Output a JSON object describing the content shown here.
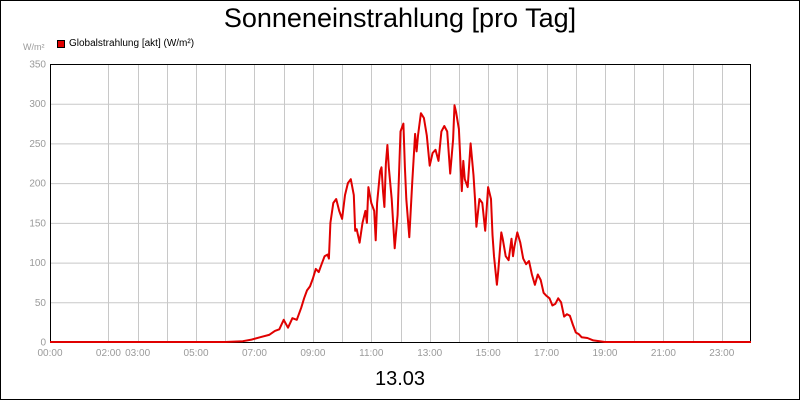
{
  "chart_data": {
    "type": "line",
    "title": "Sonneneinstrahlung [pro Tag]",
    "y_unit_label": "W/m²",
    "x_caption": "13.03",
    "legend": [
      {
        "name": "Globalstrahlung [akt] (W/m²)",
        "color": "#e00000"
      }
    ],
    "legend_position": "top-left",
    "grid": true,
    "xlim": [
      0,
      24
    ],
    "ylim": [
      0,
      350
    ],
    "y_ticks": [
      0,
      50,
      100,
      150,
      200,
      250,
      300,
      350
    ],
    "x_ticks": [
      {
        "value": 0,
        "label": "00:00"
      },
      {
        "value": 2,
        "label": "02:00"
      },
      {
        "value": 3,
        "label": "03:00"
      },
      {
        "value": 5,
        "label": "05:00"
      },
      {
        "value": 7,
        "label": "07:00"
      },
      {
        "value": 9,
        "label": "09:00"
      },
      {
        "value": 11,
        "label": "11:00"
      },
      {
        "value": 13,
        "label": "13:00"
      },
      {
        "value": 15,
        "label": "15:00"
      },
      {
        "value": 17,
        "label": "17:00"
      },
      {
        "value": 19,
        "label": "19:00"
      },
      {
        "value": 21,
        "label": "21:00"
      },
      {
        "value": 23,
        "label": "23:00"
      }
    ],
    "x_gridlines": [
      0,
      2,
      3,
      4,
      5,
      6,
      7,
      8,
      9,
      10,
      11,
      12,
      13,
      14,
      15,
      16,
      17,
      18,
      19,
      20,
      21,
      22,
      23
    ],
    "series": [
      {
        "name": "Globalstrahlung [akt] (W/m²)",
        "color": "#e00000",
        "points": [
          [
            0,
            0
          ],
          [
            6.0,
            0
          ],
          [
            6.6,
            1
          ],
          [
            6.9,
            3
          ],
          [
            7.2,
            6
          ],
          [
            7.5,
            9
          ],
          [
            7.7,
            14
          ],
          [
            7.85,
            16
          ],
          [
            8.0,
            28
          ],
          [
            8.15,
            18
          ],
          [
            8.3,
            30
          ],
          [
            8.45,
            28
          ],
          [
            8.6,
            43
          ],
          [
            8.7,
            55
          ],
          [
            8.8,
            65
          ],
          [
            8.9,
            70
          ],
          [
            9.0,
            80
          ],
          [
            9.1,
            92
          ],
          [
            9.2,
            88
          ],
          [
            9.3,
            98
          ],
          [
            9.4,
            108
          ],
          [
            9.5,
            110
          ],
          [
            9.55,
            105
          ],
          [
            9.6,
            150
          ],
          [
            9.7,
            175
          ],
          [
            9.8,
            180
          ],
          [
            9.9,
            165
          ],
          [
            10.0,
            155
          ],
          [
            10.1,
            185
          ],
          [
            10.2,
            200
          ],
          [
            10.3,
            205
          ],
          [
            10.4,
            185
          ],
          [
            10.45,
            140
          ],
          [
            10.5,
            142
          ],
          [
            10.6,
            125
          ],
          [
            10.7,
            150
          ],
          [
            10.8,
            165
          ],
          [
            10.85,
            150
          ],
          [
            10.9,
            195
          ],
          [
            11.0,
            175
          ],
          [
            11.1,
            165
          ],
          [
            11.15,
            128
          ],
          [
            11.2,
            175
          ],
          [
            11.3,
            215
          ],
          [
            11.35,
            220
          ],
          [
            11.4,
            190
          ],
          [
            11.45,
            170
          ],
          [
            11.5,
            225
          ],
          [
            11.55,
            248
          ],
          [
            11.6,
            220
          ],
          [
            11.7,
            180
          ],
          [
            11.8,
            118
          ],
          [
            11.9,
            160
          ],
          [
            12.0,
            265
          ],
          [
            12.1,
            275
          ],
          [
            12.15,
            220
          ],
          [
            12.2,
            180
          ],
          [
            12.3,
            132
          ],
          [
            12.4,
            200
          ],
          [
            12.5,
            262
          ],
          [
            12.55,
            240
          ],
          [
            12.6,
            260
          ],
          [
            12.7,
            288
          ],
          [
            12.8,
            282
          ],
          [
            12.9,
            260
          ],
          [
            13.0,
            222
          ],
          [
            13.1,
            238
          ],
          [
            13.2,
            242
          ],
          [
            13.3,
            228
          ],
          [
            13.4,
            265
          ],
          [
            13.5,
            272
          ],
          [
            13.6,
            265
          ],
          [
            13.7,
            212
          ],
          [
            13.8,
            255
          ],
          [
            13.85,
            298
          ],
          [
            13.9,
            290
          ],
          [
            14.0,
            268
          ],
          [
            14.1,
            190
          ],
          [
            14.15,
            228
          ],
          [
            14.2,
            205
          ],
          [
            14.3,
            195
          ],
          [
            14.4,
            250
          ],
          [
            14.5,
            210
          ],
          [
            14.55,
            180
          ],
          [
            14.6,
            145
          ],
          [
            14.7,
            180
          ],
          [
            14.8,
            175
          ],
          [
            14.9,
            140
          ],
          [
            15.0,
            195
          ],
          [
            15.1,
            180
          ],
          [
            15.15,
            135
          ],
          [
            15.2,
            108
          ],
          [
            15.3,
            72
          ],
          [
            15.35,
            90
          ],
          [
            15.45,
            138
          ],
          [
            15.5,
            130
          ],
          [
            15.6,
            108
          ],
          [
            15.7,
            103
          ],
          [
            15.8,
            130
          ],
          [
            15.85,
            108
          ],
          [
            15.9,
            120
          ],
          [
            16.0,
            138
          ],
          [
            16.1,
            125
          ],
          [
            16.2,
            105
          ],
          [
            16.3,
            98
          ],
          [
            16.4,
            102
          ],
          [
            16.5,
            85
          ],
          [
            16.6,
            72
          ],
          [
            16.7,
            85
          ],
          [
            16.8,
            78
          ],
          [
            16.9,
            62
          ],
          [
            17.0,
            58
          ],
          [
            17.1,
            55
          ],
          [
            17.2,
            46
          ],
          [
            17.3,
            48
          ],
          [
            17.4,
            55
          ],
          [
            17.5,
            50
          ],
          [
            17.6,
            32
          ],
          [
            17.7,
            35
          ],
          [
            17.8,
            33
          ],
          [
            17.9,
            22
          ],
          [
            18.0,
            12
          ],
          [
            18.1,
            10
          ],
          [
            18.2,
            6
          ],
          [
            18.4,
            5
          ],
          [
            18.6,
            2
          ],
          [
            19.0,
            0
          ],
          [
            24,
            0
          ]
        ]
      }
    ]
  }
}
